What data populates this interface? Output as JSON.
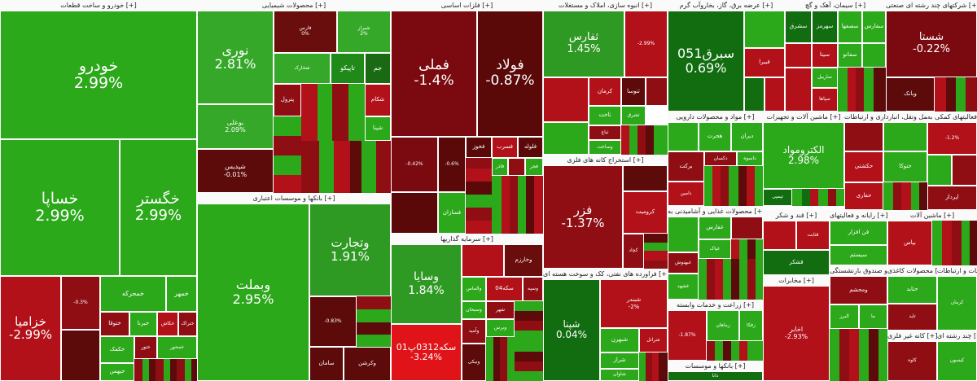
{
  "sectors": [
    {
      "title": "خودرو و ساخت قطعات [+]",
      "tiles": [
        {
          "name": "خودرو",
          "pct": "2.99%",
          "color": "#2ca81b"
        },
        {
          "name": "خساپا",
          "pct": "2.99%",
          "color": "#2ca81b"
        },
        {
          "name": "خگستر",
          "pct": "2.99%",
          "color": "#2ca81b"
        },
        {
          "name": "خزامیا",
          "pct": "-2.99%",
          "color": "#b2111a"
        },
        {
          "name": "",
          "pct": "-0.3%",
          "color": "#8e0e14"
        },
        {
          "name": "خمحرکه",
          "pct": "",
          "color": "#2ca81b"
        },
        {
          "name": "خمهر",
          "pct": "",
          "color": "#2ca81b"
        },
        {
          "name": "ختوقا",
          "pct": "",
          "color": "#8e0e14"
        },
        {
          "name": "خبرنا",
          "pct": "",
          "color": "#2ca81b"
        },
        {
          "name": "خکاش",
          "pct": "",
          "color": "#b2111a"
        },
        {
          "name": "ختراک",
          "pct": "",
          "color": "#8e0e14"
        },
        {
          "name": "خکمک",
          "pct": "",
          "color": "#2ca81b"
        },
        {
          "name": "خبهمن",
          "pct": "",
          "color": "#2ca81b"
        },
        {
          "name": "ختور",
          "pct": "",
          "color": "#8e0e14"
        },
        {
          "name": "خمحور",
          "pct": "",
          "color": "#2ca81b"
        }
      ]
    },
    {
      "title": "محصولات شیمیایی [+]",
      "tiles": [
        {
          "name": "نوری",
          "pct": "2.81%",
          "color": "#35a829"
        },
        {
          "name": "بوعلی",
          "pct": "2.09%",
          "color": "#35a829"
        },
        {
          "name": "شپدیس",
          "pct": "-0.01%",
          "color": "#5c0a0a"
        },
        {
          "name": "فارس",
          "pct": "0%",
          "color": "#6a0d0d"
        },
        {
          "name": "شیراز",
          "pct": "2%",
          "color": "#35a829"
        },
        {
          "name": "تاپیکو",
          "pct": "",
          "color": "#1f8a18"
        },
        {
          "name": "جم",
          "pct": "",
          "color": "#1a6a14"
        },
        {
          "name": "شخارک",
          "pct": "",
          "color": "#35a829"
        },
        {
          "name": "پترول",
          "pct": "",
          "color": "#8e0e14"
        },
        {
          "name": "شکام",
          "pct": "",
          "color": "#b2111a"
        },
        {
          "name": "شپنا",
          "pct": "",
          "color": "#2ca81b"
        }
      ]
    },
    {
      "title": "بانکها و موسسات اعتباری [+]",
      "tiles": [
        {
          "name": "وبملت",
          "pct": "2.95%",
          "color": "#2ca81b"
        },
        {
          "name": "وتجارت",
          "pct": "1.91%",
          "color": "#2f9a23"
        },
        {
          "name": "",
          "pct": "-0.83%",
          "color": "#5c0a0a"
        },
        {
          "name": "وکرشن",
          "pct": "",
          "color": "#5c0a0a"
        },
        {
          "name": "سامان",
          "pct": "",
          "color": "#5c0a0a"
        }
      ]
    },
    {
      "title": "فلزات اساسی [+]",
      "tiles": [
        {
          "name": "فملی",
          "pct": "-1.4%",
          "color": "#7a0a10"
        },
        {
          "name": "فولاد",
          "pct": "-0.87%",
          "color": "#5a0808"
        },
        {
          "name": "",
          "pct": "-0.42%",
          "color": "#7a0a10"
        },
        {
          "name": "",
          "pct": "-0.6%",
          "color": "#5a0808"
        },
        {
          "name": "فخوز",
          "pct": "",
          "color": "#5a0808"
        },
        {
          "name": "فسرب",
          "pct": "",
          "color": "#b2111a"
        },
        {
          "name": "فلوله",
          "pct": "",
          "color": "#5a0808"
        },
        {
          "name": "فجر",
          "pct": "",
          "color": "#2ca81b"
        },
        {
          "name": "فاذر",
          "pct": "",
          "color": "#2ca81b"
        },
        {
          "name": "فسازان",
          "pct": "",
          "color": "#2ca81b"
        }
      ]
    },
    {
      "title": "سرمایه گذاریها [+]",
      "tiles": [
        {
          "name": "وسایا",
          "pct": "1.84%",
          "color": "#2f9a23"
        },
        {
          "name": "سکه0312پ01",
          "pct": "-3.24%",
          "color": "#e01418"
        },
        {
          "name": "وخارزم",
          "pct": "",
          "color": "#6a0d0d"
        },
        {
          "name": "وسپه",
          "pct": "",
          "color": "#8e0e14"
        },
        {
          "name": "سکه04",
          "pct": "",
          "color": "#b2111a"
        },
        {
          "name": "والماس",
          "pct": "",
          "color": "#2ca81b"
        },
        {
          "name": "شهر",
          "pct": "",
          "color": "#8e0e14"
        },
        {
          "name": "وبرس",
          "pct": "",
          "color": "#2ca81b"
        },
        {
          "name": "وسبحان",
          "pct": "",
          "color": "#2ca81b"
        },
        {
          "name": "وآمید",
          "pct": "",
          "color": "#8e0e14"
        },
        {
          "name": "ونیکی",
          "pct": "",
          "color": "#5c0a0a"
        }
      ]
    },
    {
      "title": "انبوه سازی، املاک و مستغلات [+]",
      "tiles": [
        {
          "name": "ثفارس",
          "pct": "1.45%",
          "color": "#2f9a23"
        },
        {
          "name": "",
          "pct": "-2.99%",
          "color": "#b2111a"
        },
        {
          "name": "ثنوسا",
          "pct": "",
          "color": "#5c0a0a"
        },
        {
          "name": "ثاخت",
          "pct": "",
          "color": "#2ca81b"
        },
        {
          "name": "ثباغ",
          "pct": "",
          "color": "#8e0e14"
        },
        {
          "name": "وساخت",
          "pct": "",
          "color": "#2ca81b"
        },
        {
          "name": "ثشرق",
          "pct": "",
          "color": "#2ca81b"
        },
        {
          "name": "کرمان",
          "pct": "",
          "color": "#b2111a"
        }
      ]
    },
    {
      "title": "استخراج کانه های فلزی [+]",
      "tiles": [
        {
          "name": "فزر",
          "pct": "-1.37%",
          "color": "#8e0e14"
        },
        {
          "name": "کروميت",
          "pct": "",
          "color": "#b2111a"
        },
        {
          "name": "کچاد",
          "pct": "",
          "color": "#8e0e14"
        },
        {
          "name": "کگل",
          "pct": "",
          "color": "#8e0e14"
        }
      ]
    },
    {
      "title": "فراورده های نفتی، کک و سوخت هسته ای [+]",
      "tiles": [
        {
          "name": "شپنا",
          "pct": "0.04%",
          "color": "#116d10"
        },
        {
          "name": "شبندر",
          "pct": "-2%",
          "color": "#b2111a"
        },
        {
          "name": "شاوان",
          "pct": "",
          "color": "#2ca81b"
        },
        {
          "name": "شراز",
          "pct": "",
          "color": "#2ca81b"
        },
        {
          "name": "شبهرن",
          "pct": "",
          "color": "#2ca81b"
        },
        {
          "name": "شرانل",
          "pct": "",
          "color": "#b2111a"
        }
      ]
    },
    {
      "title": "عرضه برق، گاز، بخاروآب گرم [+]",
      "tiles": [
        {
          "name": "سبرق051",
          "pct": "0.69%",
          "color": "#116d10"
        },
        {
          "name": "",
          "pct": "",
          "color": "#2ca81b"
        },
        {
          "name": "",
          "pct": "",
          "color": "#b2111a"
        },
        {
          "name": "بمپنا",
          "pct": "",
          "color": "#b2111a"
        },
        {
          "name": "فبيرا",
          "pct": "",
          "color": "#b2111a"
        },
        {
          "name": "",
          "pct": "",
          "color": "#116d10"
        }
      ]
    },
    {
      "title": "سیمان، آهک و گچ [+]",
      "tiles": [
        {
          "name": "سفارس",
          "pct": "",
          "color": "#2ca81b"
        },
        {
          "name": "سصفها",
          "pct": "",
          "color": "#2ca81b"
        },
        {
          "name": "سهرمز",
          "pct": "",
          "color": "#116d10"
        },
        {
          "name": "سشرق",
          "pct": "",
          "color": "#b2111a"
        },
        {
          "name": "سيتا",
          "pct": "",
          "color": "#b2111a"
        },
        {
          "name": "ساربيل",
          "pct": "",
          "color": "#2ca81b"
        },
        {
          "name": "سفانو",
          "pct": "",
          "color": "#2ca81b"
        },
        {
          "name": "سپاها",
          "pct": "",
          "color": "#b2111a"
        }
      ]
    },
    {
      "title": "شرکتهای چند رشته ای صنعتی [+]",
      "tiles": [
        {
          "name": "شستا",
          "pct": "-0.22%",
          "color": "#7a0a10"
        },
        {
          "name": "وبانک",
          "pct": "",
          "color": "#5c0a0a"
        }
      ]
    },
    {
      "title": "مواد و محصولات دارویی [+]",
      "tiles": [
        {
          "name": "هجرت",
          "pct": "",
          "color": "#2ca81b"
        },
        {
          "name": "دیران",
          "pct": "",
          "color": "#2ca81b"
        },
        {
          "name": "دکسان",
          "pct": "",
          "color": "#8e0e14"
        },
        {
          "name": "برکت",
          "pct": "",
          "color": "#8e0e14"
        },
        {
          "name": "داسوه",
          "pct": "",
          "color": "#2ca81b"
        },
        {
          "name": "دامین",
          "pct": "",
          "color": "#b2111a"
        }
      ]
    },
    {
      "title": "ماشین آلات و تجهیزات [+]",
      "tiles": [
        {
          "name": "الکترومواد",
          "pct": "2.98%",
          "color": "#2ca81b"
        },
        {
          "name": "تپمپی",
          "pct": "",
          "color": "#116d10"
        }
      ]
    },
    {
      "title": "حمل ونقل، انبارداری و ارتباطات [+]",
      "tiles": [
        {
          "name": "حکشتی",
          "pct": "",
          "color": "#b2111a"
        },
        {
          "name": "حفاری",
          "pct": "",
          "color": "#b2111a"
        },
        {
          "name": "حتوکا",
          "pct": "",
          "color": "#2ca81b"
        }
      ]
    },
    {
      "title": "فعالیتهای کمکی به [+]",
      "tiles": [
        {
          "name": "",
          "pct": "-1.2%",
          "color": "#b2111a"
        },
        {
          "name": "اپرداز",
          "pct": "",
          "color": "#8e0e14"
        }
      ]
    },
    {
      "title": "محصولات غذایی و آشامیدنی به [+]",
      "tiles": [
        {
          "name": "غفارس",
          "pct": "",
          "color": "#2ca81b"
        },
        {
          "name": "غبهنوش",
          "pct": "",
          "color": "#8e0e14"
        },
        {
          "name": "غشهد",
          "pct": "",
          "color": "#2ca81b"
        },
        {
          "name": "غپاک",
          "pct": "",
          "color": "#2ca81b"
        }
      ]
    },
    {
      "title": "قند و شکر [+]",
      "tiles": [
        {
          "name": "قثابت",
          "pct": "",
          "color": "#b2111a"
        },
        {
          "name": "قشکر",
          "pct": "",
          "color": "#116d10"
        }
      ]
    },
    {
      "title": "رایانه و فعالیتهای [+]",
      "tiles": [
        {
          "name": "فن افزار",
          "pct": "",
          "color": "#2ca81b"
        },
        {
          "name": "سیستم",
          "pct": "",
          "color": "#2ca81b"
        }
      ]
    },
    {
      "title": "ماشین آلات [+]",
      "tiles": [
        {
          "name": "بپاس",
          "pct": "",
          "color": "#b2111a"
        }
      ]
    },
    {
      "title": "زراعت و خدمات وابسته [+]",
      "tiles": [
        {
          "name": "",
          "pct": "-1.87%",
          "color": "#b2111a"
        },
        {
          "name": "زماهان",
          "pct": "",
          "color": "#2ca81b"
        },
        {
          "name": "زفکا",
          "pct": "",
          "color": "#2ca81b"
        }
      ]
    },
    {
      "title": "مخابرات [+]",
      "tiles": [
        {
          "name": "اخابر",
          "pct": "-2.93%",
          "color": "#b2111a"
        }
      ]
    },
    {
      "title": "بیمه و صندوق بازنشستگی [+]",
      "tiles": [
        {
          "name": "ومحشم",
          "pct": "",
          "color": "#8e0e14"
        },
        {
          "name": "البرز",
          "pct": "",
          "color": "#2ca81b"
        },
        {
          "name": "ما",
          "pct": "",
          "color": "#2ca81b"
        }
      ]
    },
    {
      "title": "بانکها و موسسات [+]",
      "tiles": [
        {
          "name": "دانا",
          "pct": "",
          "color": "#116d10"
        }
      ]
    },
    {
      "title": "محصولات کاغذی [+]",
      "tiles": [
        {
          "name": "حتاید",
          "pct": "",
          "color": "#2ca81b"
        },
        {
          "name": "تاید",
          "pct": "",
          "color": "#8e0e14"
        }
      ]
    },
    {
      "title": "اطلاعات و ارتباطات [+]",
      "tiles": [
        {
          "name": "کرمان",
          "pct": "",
          "color": "#2ca81b"
        }
      ]
    },
    {
      "title": "کانه غیر فلزی [+]",
      "tiles": [
        {
          "name": "کاوه",
          "pct": "",
          "color": "#8e0e14"
        }
      ]
    },
    {
      "title": "چند رشته ای [+]",
      "tiles": [
        {
          "name": "کیسون",
          "pct": "",
          "color": "#2ca81b"
        }
      ]
    }
  ]
}
